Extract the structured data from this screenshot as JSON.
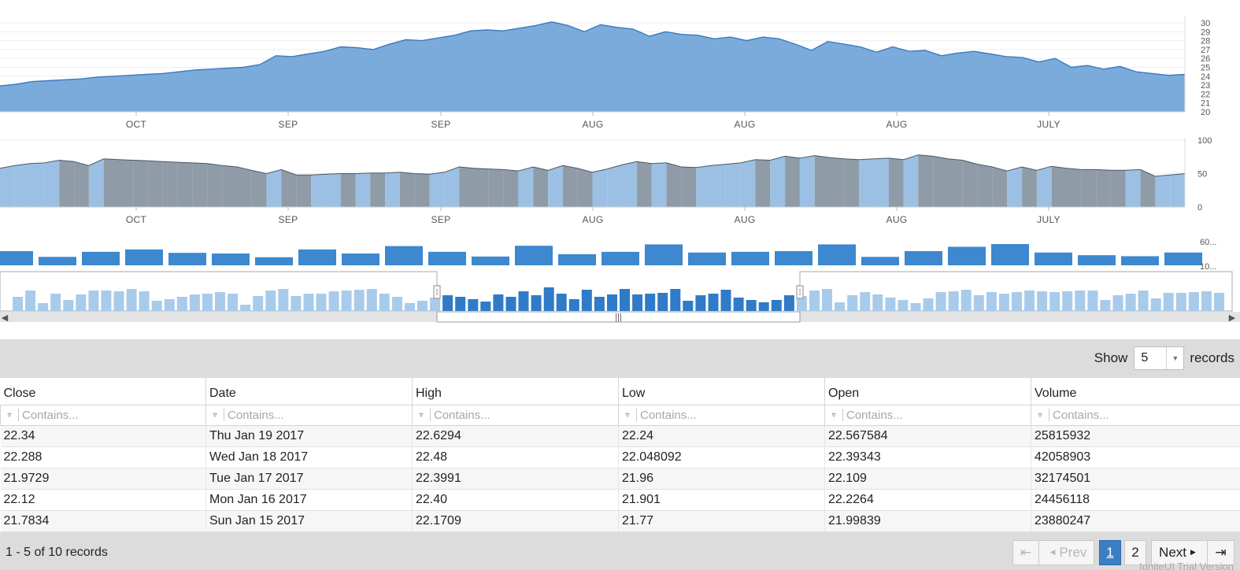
{
  "colors": {
    "price_fill": "#7aabdb",
    "price_line": "#3b7abf",
    "range_fill_light": "#9bc0e3",
    "range_fill_dark": "#8f9ba6",
    "volume_bar": "#3d88cf",
    "nav_bar_light": "#a9cbeb",
    "nav_bar_dark": "#2f7bc7",
    "toolbar_bg": "#dcdcdc",
    "active_page": "#3a7fc4"
  },
  "chart_data": [
    {
      "type": "area",
      "title": "",
      "x_tick_labels": [
        "OCT",
        "SEP",
        "SEP",
        "AUG",
        "AUG",
        "AUG",
        "JULY"
      ],
      "y_tick_labels": [
        "20",
        "21",
        "22",
        "23",
        "24",
        "25",
        "26",
        "27",
        "28",
        "29",
        "30"
      ],
      "ylim": [
        20,
        30
      ],
      "series": [
        {
          "values": [
            22.9,
            23.1,
            23.4,
            23.5,
            23.6,
            23.7,
            23.9,
            24.0,
            24.1,
            24.2,
            24.3,
            24.5,
            24.7,
            24.8,
            24.9,
            25.0,
            25.3,
            26.3,
            26.2,
            26.5,
            26.8,
            27.3,
            27.2,
            27.0,
            27.6,
            28.1,
            28.0,
            28.3,
            28.6,
            29.1,
            29.2,
            29.1,
            29.4,
            29.7,
            30.1,
            29.7,
            29.0,
            29.8,
            29.5,
            29.3,
            28.5,
            29.0,
            28.7,
            28.6,
            28.2,
            28.4,
            28.0,
            28.4,
            28.2,
            27.6,
            26.9,
            27.9,
            27.6,
            27.3,
            26.7,
            27.3,
            26.8,
            26.9,
            26.3,
            26.6,
            26.8,
            26.5,
            26.2,
            26.1,
            25.6,
            26.0,
            25.0,
            25.2,
            24.8,
            25.1,
            24.5,
            24.3,
            24.1,
            24.2
          ]
        }
      ]
    },
    {
      "type": "area",
      "title": "",
      "x_tick_labels": [
        "OCT",
        "SEP",
        "SEP",
        "AUG",
        "AUG",
        "AUG",
        "JULY"
      ],
      "y_tick_labels": [
        "0",
        "50",
        "100"
      ],
      "ylim": [
        0,
        100
      ],
      "series": [
        {
          "values": [
            58,
            62,
            65,
            66,
            70,
            68,
            62,
            72,
            71,
            70,
            69,
            68,
            67,
            66,
            65,
            62,
            60,
            55,
            50,
            56,
            48,
            48,
            49,
            50,
            50,
            51,
            51,
            52,
            50,
            49,
            52,
            60,
            58,
            57,
            56,
            54,
            60,
            55,
            62,
            58,
            52,
            57,
            63,
            68,
            65,
            66,
            60,
            59,
            62,
            64,
            66,
            71,
            70,
            76,
            73,
            77,
            74,
            72,
            71,
            72,
            73,
            71,
            78,
            76,
            72,
            70,
            64,
            60,
            54,
            60,
            55,
            61,
            58,
            56,
            56,
            55,
            55,
            56,
            46,
            48,
            50
          ]
        }
      ]
    },
    {
      "type": "bar",
      "title": "",
      "y_tick_labels": [
        "60...",
        "10..."
      ],
      "values": [
        42,
        25,
        40,
        47,
        37,
        35,
        24,
        47,
        35,
        57,
        40,
        26,
        58,
        33,
        40,
        62,
        38,
        40,
        42,
        62,
        25,
        42,
        55,
        63,
        38,
        30,
        27,
        38
      ]
    },
    {
      "type": "bar",
      "title": "",
      "values": [
        18,
        26,
        10,
        22,
        14,
        21,
        26,
        26,
        25,
        28,
        25,
        13,
        15,
        18,
        21,
        22,
        24,
        22,
        8,
        19,
        26,
        28,
        19,
        22,
        22,
        25,
        26,
        27,
        28,
        22,
        18,
        10,
        13,
        17,
        20,
        18,
        15,
        12,
        21,
        18,
        25,
        20,
        30,
        22,
        15,
        27,
        18,
        21,
        28,
        21,
        22,
        23,
        28,
        13,
        20,
        22,
        27,
        17,
        14,
        11,
        14,
        20,
        19,
        26,
        28,
        11,
        20,
        24,
        21,
        17,
        14,
        10,
        16,
        24,
        25,
        27,
        20,
        24,
        22,
        24,
        26,
        25,
        24,
        25,
        26,
        26,
        14,
        20,
        22,
        26,
        16,
        23,
        23,
        24,
        25,
        23
      ]
    }
  ],
  "range_selector": {
    "start_handle_label": "⁞",
    "end_handle_label": "⁞",
    "thumb_label": "|||",
    "left_arrow": "◀",
    "right_arrow": "▶"
  },
  "grid": {
    "page_size_prefix": "Show",
    "page_size_value": "5",
    "page_size_suffix": "records",
    "columns": [
      "Close",
      "Date",
      "High",
      "Low",
      "Open",
      "Volume"
    ],
    "filter_placeholder": "Contains...",
    "rows": [
      [
        "22.34",
        "Thu Jan 19 2017",
        "22.6294",
        "22.24",
        "22.567584",
        "25815932"
      ],
      [
        "22.288",
        "Wed Jan 18 2017",
        "22.48",
        "22.048092",
        "22.39343",
        "42058903"
      ],
      [
        "21.9729",
        "Tue Jan 17 2017",
        "22.3991",
        "21.96",
        "22.109",
        "32174501"
      ],
      [
        "22.12",
        "Mon Jan 16 2017",
        "22.40",
        "21.901",
        "22.2264",
        "24456118"
      ],
      [
        "21.7834",
        "Sun Jan 15 2017",
        "22.1709",
        "21.77",
        "21.99839",
        "23880247"
      ]
    ],
    "summary": "1 - 5 of 10 records",
    "pager": {
      "first_label": "⇤",
      "prev_label": "Prev",
      "pages": [
        "1",
        "2"
      ],
      "active_page": "1",
      "next_label": "Next",
      "last_label": "⇥"
    },
    "watermark": "IgniteUI Trial Version"
  }
}
